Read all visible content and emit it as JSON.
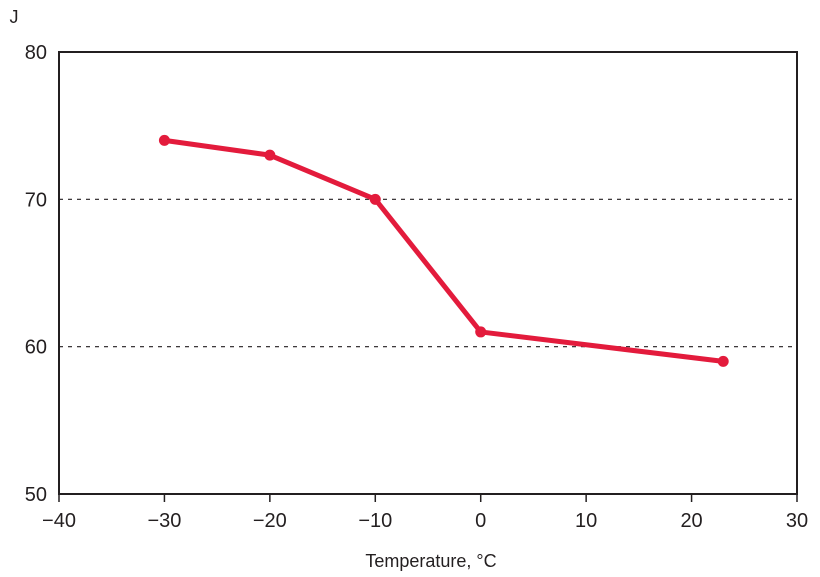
{
  "chart_data": {
    "type": "line",
    "title": "",
    "xlabel": "Temperature, °C",
    "ylabel": "J",
    "xlim": [
      -40,
      30
    ],
    "ylim": [
      50,
      80
    ],
    "x_ticks": [
      -40,
      -30,
      -20,
      -10,
      0,
      10,
      20,
      30
    ],
    "x_tick_labels": [
      "−40",
      "−30",
      "−20",
      "−10",
      "0",
      "10",
      "20",
      "30"
    ],
    "y_ticks": [
      50,
      60,
      70,
      80
    ],
    "y_tick_labels": [
      "50",
      "60",
      "70",
      "80"
    ],
    "gridlines_y": [
      60,
      70
    ],
    "grid_style": "dashed horizontal",
    "series": [
      {
        "x": [
          -30,
          -20,
          -10,
          0,
          23
        ],
        "y": [
          74,
          73,
          70,
          61,
          59
        ],
        "color": "#e31b3c"
      }
    ]
  }
}
